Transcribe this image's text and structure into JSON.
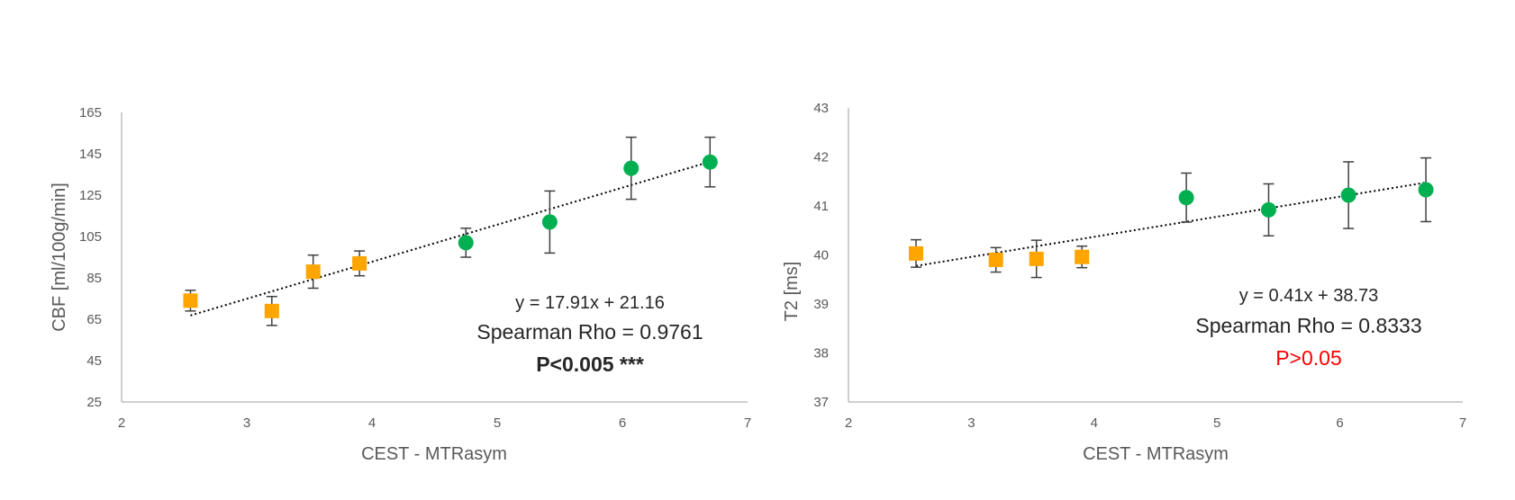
{
  "colors": {
    "group_a": "#FFA500",
    "group_b": "#00B050",
    "axis": "#BFBFBF",
    "error_bar": "#404040",
    "trendline": "#000000",
    "p_not_significant": "#FF0000"
  },
  "chart_data": [
    {
      "type": "scatter",
      "xlabel": "CEST - MTRasym",
      "ylabel": "CBF [ml/100g/min]",
      "xlim": [
        2,
        7
      ],
      "ylim": [
        25,
        165
      ],
      "x_ticks": [
        "2",
        "3",
        "4",
        "5",
        "6",
        "7"
      ],
      "y_ticks": [
        "25",
        "45",
        "65",
        "85",
        "105",
        "125",
        "145",
        "165"
      ],
      "grid": false,
      "series": [
        {
          "marker": "square",
          "color": "#FFA500",
          "points": [
            {
              "x": 2.55,
              "y": 74,
              "err": 5
            },
            {
              "x": 3.2,
              "y": 69,
              "err": 7
            },
            {
              "x": 3.53,
              "y": 88,
              "err": 8
            },
            {
              "x": 3.9,
              "y": 92,
              "err": 6
            }
          ]
        },
        {
          "marker": "circle",
          "color": "#00B050",
          "points": [
            {
              "x": 4.75,
              "y": 102,
              "err": 7
            },
            {
              "x": 5.42,
              "y": 112,
              "err": 15
            },
            {
              "x": 6.07,
              "y": 138,
              "err": 15
            },
            {
              "x": 6.7,
              "y": 141,
              "err": 12
            }
          ]
        }
      ],
      "trendline": {
        "slope": 17.91,
        "intercept": 21.16,
        "x_range": [
          2.55,
          6.7
        ],
        "style": "dotted"
      },
      "annotations": {
        "equation": "y = 17.91x + 21.16",
        "rho": "Spearman Rho = 0.9761",
        "p_value": "P<0.005 ***"
      }
    },
    {
      "type": "scatter",
      "xlabel": "CEST - MTRasym",
      "ylabel": "T2 [ms]",
      "xlim": [
        2,
        7
      ],
      "ylim": [
        37,
        43
      ],
      "x_ticks": [
        "2",
        "3",
        "4",
        "5",
        "6",
        "7"
      ],
      "y_ticks": [
        "37",
        "38",
        "39",
        "40",
        "41",
        "42",
        "43"
      ],
      "grid": false,
      "series": [
        {
          "marker": "square",
          "color": "#FFA500",
          "points": [
            {
              "x": 2.55,
              "y": 40.03,
              "err": 0.28
            },
            {
              "x": 3.2,
              "y": 39.9,
              "err": 0.25
            },
            {
              "x": 3.53,
              "y": 39.92,
              "err": 0.38
            },
            {
              "x": 3.9,
              "y": 39.96,
              "err": 0.22
            }
          ]
        },
        {
          "marker": "circle",
          "color": "#00B050",
          "points": [
            {
              "x": 4.75,
              "y": 41.17,
              "err": 0.5
            },
            {
              "x": 5.42,
              "y": 40.92,
              "err": 0.53
            },
            {
              "x": 6.07,
              "y": 41.22,
              "err": 0.68
            },
            {
              "x": 6.7,
              "y": 41.33,
              "err": 0.65
            }
          ]
        }
      ],
      "trendline": {
        "slope": 0.41,
        "intercept": 38.73,
        "x_range": [
          2.55,
          6.7
        ],
        "style": "dotted"
      },
      "annotations": {
        "equation": "y = 0.41x + 38.73",
        "rho": "Spearman Rho = 0.8333",
        "p_value": "P>0.05"
      }
    }
  ]
}
